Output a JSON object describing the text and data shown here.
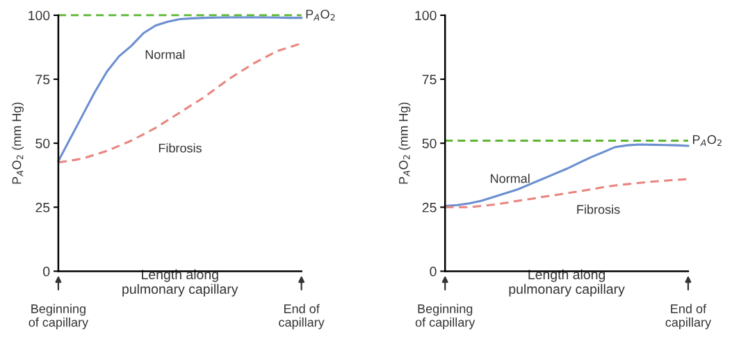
{
  "chart_data": [
    {
      "type": "line",
      "xlabel": "Length along\npulmonary capillary",
      "ylabel": "P$_{A}$O$_{2}$ (mm Hg)",
      "ylim": [
        0,
        100
      ],
      "yticks": [
        0,
        25,
        50,
        75,
        100
      ],
      "grid": false,
      "legend": false,
      "marker": "none",
      "categories": [
        "Beginning\nof capillary",
        null,
        null,
        null,
        null,
        null,
        null,
        null,
        null,
        null,
        null,
        null,
        null,
        null,
        null,
        null,
        null,
        null,
        null,
        null,
        "End of\ncapillary"
      ],
      "series": [
        {
          "name": "Normal",
          "color": "#6b8fd0",
          "line_style": "solid",
          "values": [
            43,
            52,
            61,
            70,
            78,
            84,
            88,
            93,
            96,
            97.5,
            98.5,
            98.8,
            99,
            99.1,
            99.2,
            99.2,
            99.2,
            99.2,
            99.1,
            99,
            99
          ]
        },
        {
          "name": "Fibrosis",
          "color": "#e8857f",
          "line_style": "dashed",
          "values": [
            42.5,
            43.2,
            44,
            45.5,
            47,
            49,
            51,
            53.5,
            56,
            59,
            62,
            65,
            68,
            71.5,
            75,
            78,
            81,
            83.5,
            86,
            87.5,
            89
          ]
        }
      ],
      "ref_lines": [
        {
          "axis": "y",
          "value": 100,
          "label": "P$_{A}$O$_{2}$",
          "color": "#5cb531",
          "line_style": "dashed"
        }
      ]
    },
    {
      "type": "line",
      "xlabel": "Length along\npulmonary capillary",
      "ylabel": "P$_{A}$O$_{2}$ (mm Hg)",
      "ylim": [
        0,
        100
      ],
      "yticks": [
        0,
        25,
        50,
        75,
        100
      ],
      "grid": false,
      "legend": false,
      "marker": "none",
      "categories": [
        "Beginning\nof capillary",
        null,
        null,
        null,
        null,
        null,
        null,
        null,
        null,
        null,
        null,
        null,
        null,
        null,
        null,
        null,
        null,
        null,
        null,
        null,
        "End of\ncapillary"
      ],
      "series": [
        {
          "name": "Normal",
          "color": "#6b8fd0",
          "line_style": "solid",
          "values": [
            25.5,
            25.8,
            26.5,
            27.5,
            29,
            30.5,
            32,
            34,
            36,
            38,
            40,
            42.3,
            44.5,
            46.5,
            48.5,
            49.2,
            49.5,
            49.4,
            49.3,
            49.2,
            49
          ]
        },
        {
          "name": "Fibrosis",
          "color": "#e8857f",
          "line_style": "dashed",
          "values": [
            25,
            25,
            25,
            25.5,
            26,
            26.7,
            27.5,
            28.2,
            29,
            29.7,
            30.5,
            31.2,
            32,
            32.8,
            33.5,
            34,
            34.5,
            35,
            35.3,
            35.7,
            36
          ]
        }
      ],
      "ref_lines": [
        {
          "axis": "y",
          "value": 51,
          "label": "P$_{A}$O$_{2}$",
          "color": "#5cb531",
          "line_style": "dashed"
        }
      ]
    }
  ]
}
